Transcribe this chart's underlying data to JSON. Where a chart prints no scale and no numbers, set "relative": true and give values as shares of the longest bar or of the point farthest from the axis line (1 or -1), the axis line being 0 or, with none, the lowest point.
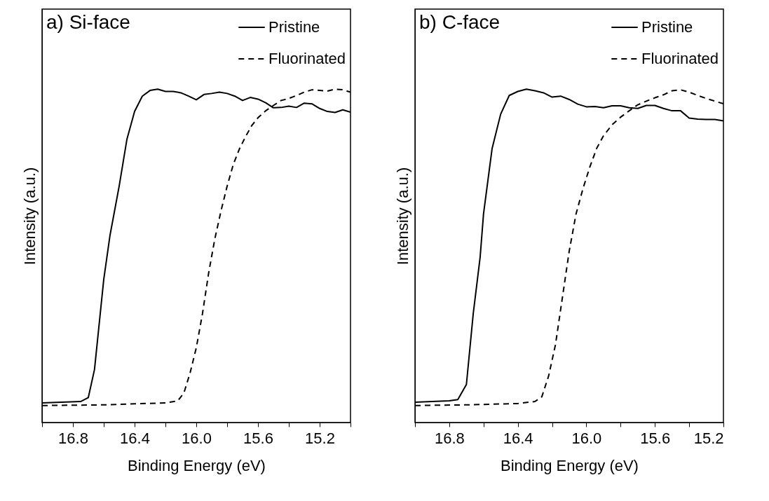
{
  "chart_data": [
    {
      "type": "line",
      "title": "a) Si-face",
      "xlabel": "Binding Energy (eV)",
      "ylabel": "Intensity (a.u.)",
      "relative": true,
      "tick_labels": "x",
      "legend": "top right",
      "grid": false,
      "xlim": [
        17.0,
        15.0
      ],
      "xticks": [
        {
          "value": 17.0,
          "label": null
        },
        16.8,
        {
          "value": 16.6,
          "label": null
        },
        16.4,
        {
          "value": 16.2,
          "label": null
        },
        {
          "value": 16.0,
          "label": "16.0"
        },
        {
          "value": 15.8,
          "label": null
        },
        15.6,
        {
          "value": 15.4,
          "label": null
        },
        15.2,
        {
          "value": 15.0,
          "label": null
        }
      ],
      "series": [
        {
          "name": "Pristine",
          "color": "#000000",
          "line_style": "solid",
          "x": [
            17.0,
            16.75,
            16.7,
            16.66,
            16.6,
            16.56,
            16.5,
            16.45,
            16.4,
            16.35,
            16.3,
            16.25,
            16.2,
            16.15,
            16.1,
            16.05,
            16.0,
            15.95,
            15.9,
            15.85,
            15.8,
            15.75,
            15.7,
            15.65,
            15.6,
            15.55,
            15.5,
            15.45,
            15.4,
            15.35,
            15.3,
            15.25,
            15.2,
            15.15,
            15.1,
            15.05,
            15.0
          ],
          "values": [
            0.059,
            0.063,
            0.075,
            0.159,
            0.429,
            0.56,
            0.709,
            0.849,
            0.933,
            0.979,
            0.996,
            1.0,
            0.993,
            0.993,
            0.989,
            0.979,
            0.968,
            0.984,
            0.987,
            0.991,
            0.987,
            0.979,
            0.966,
            0.975,
            0.97,
            0.959,
            0.944,
            0.945,
            0.949,
            0.945,
            0.958,
            0.956,
            0.942,
            0.933,
            0.93,
            0.938,
            0.931
          ]
        },
        {
          "name": "Fluorinated",
          "color": "#000000",
          "line_style": "dashed",
          "x": [
            17.0,
            16.6,
            16.4,
            16.2,
            16.12,
            16.08,
            16.04,
            16.0,
            15.96,
            15.92,
            15.88,
            15.84,
            15.8,
            15.76,
            15.72,
            15.68,
            15.64,
            15.6,
            15.55,
            15.5,
            15.45,
            15.4,
            15.35,
            15.3,
            15.25,
            15.2,
            15.15,
            15.1,
            15.05,
            15.0
          ],
          "values": [
            0.051,
            0.053,
            0.056,
            0.059,
            0.065,
            0.089,
            0.149,
            0.224,
            0.326,
            0.448,
            0.55,
            0.634,
            0.709,
            0.774,
            0.821,
            0.858,
            0.891,
            0.914,
            0.935,
            0.951,
            0.966,
            0.972,
            0.981,
            0.991,
            0.998,
            0.996,
            0.994,
            1.0,
            0.998,
            0.991
          ]
        }
      ]
    },
    {
      "type": "line",
      "title": "b) C-face",
      "xlabel": "Binding Energy (eV)",
      "ylabel": "Intensity (a.u.)",
      "relative": true,
      "tick_labels": "x",
      "legend": "top right",
      "grid": false,
      "xlim": [
        17.0,
        15.2
      ],
      "xticks": [
        {
          "value": 17.0,
          "label": null
        },
        16.8,
        {
          "value": 16.6,
          "label": null
        },
        16.4,
        {
          "value": 16.2,
          "label": null
        },
        {
          "value": 16.0,
          "label": "16.0"
        },
        {
          "value": 15.8,
          "label": null
        },
        15.6,
        {
          "value": 15.4,
          "label": null
        },
        15.2
      ],
      "series": [
        {
          "name": "Pristine",
          "color": "#000000",
          "line_style": "solid",
          "x": [
            17.0,
            16.8,
            16.75,
            16.7,
            16.66,
            16.62,
            16.6,
            16.55,
            16.5,
            16.45,
            16.4,
            16.35,
            16.3,
            16.25,
            16.2,
            16.15,
            16.1,
            16.05,
            16.0,
            15.95,
            15.9,
            15.85,
            15.8,
            15.75,
            15.7,
            15.65,
            15.6,
            15.55,
            15.5,
            15.45,
            15.4,
            15.35,
            15.3,
            15.25,
            15.2
          ],
          "values": [
            0.061,
            0.065,
            0.069,
            0.114,
            0.327,
            0.495,
            0.626,
            0.822,
            0.925,
            0.981,
            0.993,
            1.0,
            0.995,
            0.989,
            0.976,
            0.979,
            0.969,
            0.955,
            0.947,
            0.948,
            0.944,
            0.95,
            0.95,
            0.944,
            0.942,
            0.951,
            0.951,
            0.942,
            0.935,
            0.935,
            0.913,
            0.91,
            0.909,
            0.909,
            0.905
          ]
        },
        {
          "name": "Fluorinated",
          "color": "#000000",
          "line_style": "dashed",
          "x": [
            17.0,
            16.7,
            16.4,
            16.3,
            16.26,
            16.22,
            16.18,
            16.14,
            16.1,
            16.06,
            16.02,
            15.98,
            15.94,
            15.9,
            15.85,
            15.8,
            15.75,
            15.7,
            15.65,
            15.6,
            15.55,
            15.5,
            15.45,
            15.4,
            15.35,
            15.3,
            15.25,
            15.2
          ],
          "values": [
            0.051,
            0.053,
            0.057,
            0.063,
            0.077,
            0.14,
            0.234,
            0.374,
            0.514,
            0.626,
            0.701,
            0.766,
            0.822,
            0.86,
            0.893,
            0.916,
            0.935,
            0.953,
            0.964,
            0.974,
            0.983,
            0.995,
            0.998,
            0.991,
            0.981,
            0.972,
            0.964,
            0.956
          ]
        }
      ]
    }
  ]
}
